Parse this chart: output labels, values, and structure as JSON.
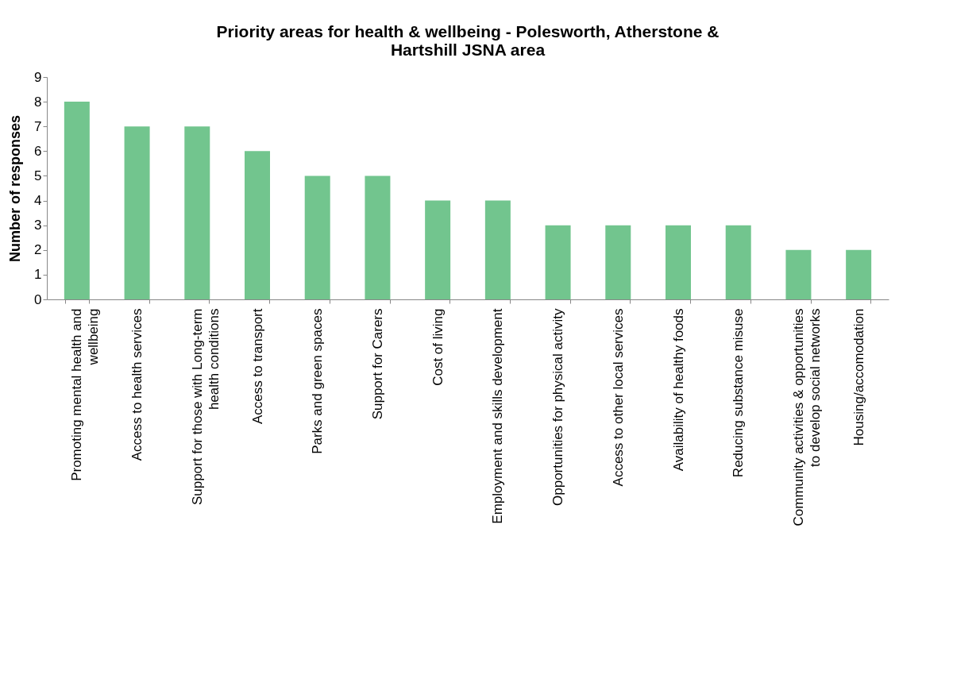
{
  "chart_data": {
    "type": "bar",
    "title": "Priority areas for health & wellbeing - Polesworth, Atherstone & Hartshill JSNA area",
    "ylabel": "Number of responses",
    "categories": [
      "Promoting mental health and wellbeing",
      "Access to health services",
      "Support for those with Long-term health conditions",
      "Access to transport",
      "Parks and green spaces",
      "Support for Carers",
      "Cost of living",
      "Employment and skills development",
      "Opportunities for physical activity",
      "Access to other local services",
      "Availability of healthy foods",
      "Reducing substance misuse",
      "Community activities & opportunities to develop social networks",
      "Housing/accomodation"
    ],
    "values": [
      8,
      7,
      7,
      6,
      5,
      5,
      4,
      4,
      3,
      3,
      3,
      3,
      2,
      2
    ],
    "color": "#72c58e",
    "ylim": [
      0,
      9
    ],
    "yticks": [
      0,
      1,
      2,
      3,
      4,
      5,
      6,
      7,
      8,
      9
    ],
    "grid": false
  }
}
